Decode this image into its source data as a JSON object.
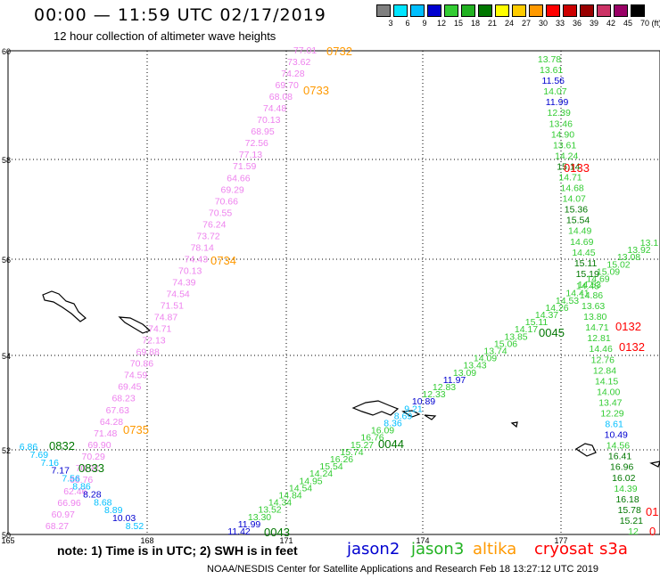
{
  "header": {
    "title": "00:00 — 11:59 UTC 02/17/2019",
    "subtitle": "12 hour collection of altimeter wave heights"
  },
  "legend": {
    "unit": "(ft)",
    "bins": [
      {
        "label": "3",
        "color": "#808080"
      },
      {
        "label": "6",
        "color": "#00e5ff"
      },
      {
        "label": "9",
        "color": "#00bfff"
      },
      {
        "label": "12",
        "color": "#0000d0"
      },
      {
        "label": "15",
        "color": "#33cc33"
      },
      {
        "label": "18",
        "color": "#22b222"
      },
      {
        "label": "21",
        "color": "#007700"
      },
      {
        "label": "24",
        "color": "#ffff00"
      },
      {
        "label": "27",
        "color": "#ffcc00"
      },
      {
        "label": "30",
        "color": "#ff9900"
      },
      {
        "label": "33",
        "color": "#ff0000"
      },
      {
        "label": "36",
        "color": "#cc0000"
      },
      {
        "label": "39",
        "color": "#990000"
      },
      {
        "label": "42",
        "color": "#cc3366"
      },
      {
        "label": "45",
        "color": "#990066"
      },
      {
        "label": "70",
        "color": "#000000"
      }
    ]
  },
  "axes": {
    "lat_ticks": [
      "60",
      "58",
      "56",
      "54",
      "52",
      "50"
    ],
    "lon_ticks": [
      "165",
      "168",
      "171",
      "174",
      "177"
    ]
  },
  "times": [
    {
      "text": "0732",
      "color": "#ff9900"
    },
    {
      "text": "0733",
      "color": "#ff9900"
    },
    {
      "text": "0734",
      "color": "#ff9900"
    },
    {
      "text": "0735",
      "color": "#ff9900"
    },
    {
      "text": "0832",
      "color": "#007700"
    },
    {
      "text": "0833",
      "color": "#007700"
    },
    {
      "text": "0044",
      "color": "#007700"
    },
    {
      "text": "0045",
      "color": "#007700"
    },
    {
      "text": "0043",
      "color": "#007700"
    },
    {
      "text": "0133",
      "color": "#ff0000"
    },
    {
      "text": "0132",
      "color": "#ff0000"
    },
    {
      "text": "0132",
      "color": "#ff0000"
    },
    {
      "text": "01",
      "color": "#ff0000"
    },
    {
      "text": "0",
      "color": "#ff0000"
    }
  ],
  "tracks": {
    "altika": [
      "77.01",
      "73.62",
      "74.28",
      "69.70",
      "68.08",
      "74.48",
      "70.13",
      "68.95",
      "72.56",
      "77.13",
      "71.59",
      "64.66",
      "69.29",
      "70.66",
      "70.55",
      "76.24",
      "73.72",
      "78.14",
      "74.43",
      "70.13",
      "74.39",
      "74.54",
      "71.51",
      "74.87",
      "74.71",
      "72.13",
      "69.88",
      "70.86",
      "74.59",
      "69.45",
      "68.23",
      "67.63",
      "64.28",
      "71.48",
      "69.90",
      "70.29",
      "70.92",
      "66.76",
      "62.46",
      "66.96",
      "60.97",
      "68.27"
    ],
    "jason3_west": [
      "6.86",
      "7.69",
      "7.16",
      "7.17",
      "7.56",
      "8.86",
      "8.28",
      "8.68",
      "8.89",
      "10.03",
      "8.52"
    ],
    "jason3_diag": [
      "11.42",
      "11.99",
      "13.30",
      "13.52",
      "14.34",
      "14.84",
      "14.54",
      "14.95",
      "14.24",
      "15.54",
      "16.26",
      "15.74",
      "15.27",
      "16.76",
      "16.09",
      "8.36",
      "8.69",
      "9.21",
      "10.89",
      "12.33",
      "12.83",
      "11.97",
      "13.09",
      "13.43",
      "14.09",
      "13.74",
      "15.06",
      "13.85",
      "14.17",
      "15.11",
      "14.37",
      "14.26",
      "14.53",
      "14.41",
      "14.45",
      "14.69",
      "15.09",
      "15.02",
      "13.08",
      "13.92",
      "13.1"
    ],
    "jason3_east": [
      "13.78",
      "13.61",
      "11.56",
      "14.07",
      "11.99",
      "12.39",
      "13.46",
      "14.90",
      "13.61",
      "14.24",
      "15.14",
      "14.71",
      "14.68",
      "14.07",
      "15.36",
      "15.54",
      "14.49",
      "14.69",
      "14.45",
      "15.11",
      "15.19",
      "14.53",
      "14.86",
      "13.63",
      "13.80",
      "14.71",
      "12.81",
      "14.46",
      "12.76",
      "12.84",
      "14.15",
      "14.00",
      "13.47",
      "12.29",
      "8.61",
      "10.49",
      "14.56",
      "16.41",
      "16.96",
      "16.02",
      "14.39",
      "16.18",
      "15.78",
      "15.21",
      "12"
    ]
  },
  "footer": {
    "note": "note:  1) Time is in UTC;  2) SWH is in feet",
    "satellites": [
      {
        "name": "jason2",
        "color": "#0000d0"
      },
      {
        "name": "jason3",
        "color": "#22b222"
      },
      {
        "name": "altika",
        "color": "#ff9900"
      },
      {
        "name": "cryosat",
        "color": "#ff0000"
      },
      {
        "name": "s3a",
        "color": "#ff0000"
      }
    ],
    "credit": "NOAA/NESDIS Center for Satellite Applications and Research    Feb 18 13:27:12 UTC 2019"
  }
}
